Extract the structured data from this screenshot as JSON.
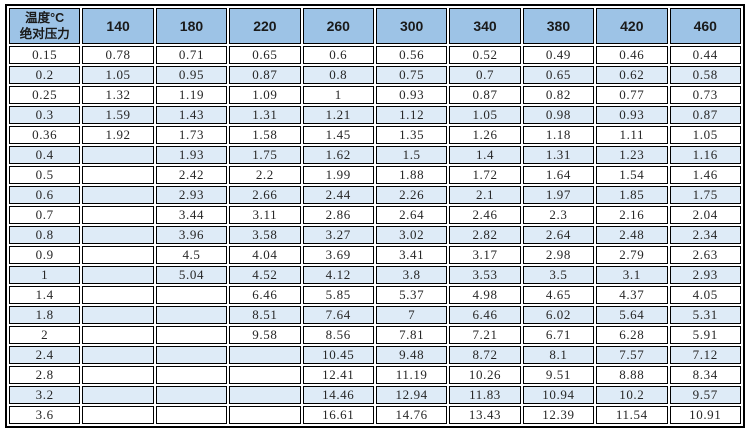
{
  "table": {
    "corner": {
      "line1": "温度°C",
      "line2": "绝对压力"
    },
    "columns": [
      "140",
      "180",
      "220",
      "260",
      "300",
      "340",
      "380",
      "420",
      "460"
    ],
    "rows": [
      {
        "pressure": "0.15",
        "values": [
          "0.78",
          "0.71",
          "0.65",
          "0.6",
          "0.56",
          "0.52",
          "0.49",
          "0.46",
          "0.44"
        ]
      },
      {
        "pressure": "0.2",
        "values": [
          "1.05",
          "0.95",
          "0.87",
          "0.8",
          "0.75",
          "0.7",
          "0.65",
          "0.62",
          "0.58"
        ]
      },
      {
        "pressure": "0.25",
        "values": [
          "1.32",
          "1.19",
          "1.09",
          "1",
          "0.93",
          "0.87",
          "0.82",
          "0.77",
          "0.73"
        ]
      },
      {
        "pressure": "0.3",
        "values": [
          "1.59",
          "1.43",
          "1.31",
          "1.21",
          "1.12",
          "1.05",
          "0.98",
          "0.93",
          "0.87"
        ]
      },
      {
        "pressure": "0.36",
        "values": [
          "1.92",
          "1.73",
          "1.58",
          "1.45",
          "1.35",
          "1.26",
          "1.18",
          "1.11",
          "1.05"
        ]
      },
      {
        "pressure": "0.4",
        "values": [
          "",
          "1.93",
          "1.75",
          "1.62",
          "1.5",
          "1.4",
          "1.31",
          "1.23",
          "1.16"
        ]
      },
      {
        "pressure": "0.5",
        "values": [
          "",
          "2.42",
          "2.2",
          "1.99",
          "1.88",
          "1.72",
          "1.64",
          "1.54",
          "1.46"
        ]
      },
      {
        "pressure": "0.6",
        "values": [
          "",
          "2.93",
          "2.66",
          "2.44",
          "2.26",
          "2.1",
          "1.97",
          "1.85",
          "1.75"
        ]
      },
      {
        "pressure": "0.7",
        "values": [
          "",
          "3.44",
          "3.11",
          "2.86",
          "2.64",
          "2.46",
          "2.3",
          "2.16",
          "2.04"
        ]
      },
      {
        "pressure": "0.8",
        "values": [
          "",
          "3.96",
          "3.58",
          "3.27",
          "3.02",
          "2.82",
          "2.64",
          "2.48",
          "2.34"
        ]
      },
      {
        "pressure": "0.9",
        "values": [
          "",
          "4.5",
          "4.04",
          "3.69",
          "3.41",
          "3.17",
          "2.98",
          "2.79",
          "2.63"
        ]
      },
      {
        "pressure": "1",
        "values": [
          "",
          "5.04",
          "4.52",
          "4.12",
          "3.8",
          "3.53",
          "3.5",
          "3.1",
          "2.93"
        ]
      },
      {
        "pressure": "1.4",
        "values": [
          "",
          "",
          "6.46",
          "5.85",
          "5.37",
          "4.98",
          "4.65",
          "4.37",
          "4.05"
        ]
      },
      {
        "pressure": "1.8",
        "values": [
          "",
          "",
          "8.51",
          "7.64",
          "7",
          "6.46",
          "6.02",
          "5.64",
          "5.31"
        ]
      },
      {
        "pressure": "2",
        "values": [
          "",
          "",
          "9.58",
          "8.56",
          "7.81",
          "7.21",
          "6.71",
          "6.28",
          "5.91"
        ]
      },
      {
        "pressure": "2.4",
        "values": [
          "",
          "",
          "",
          "10.45",
          "9.48",
          "8.72",
          "8.1",
          "7.57",
          "7.12"
        ]
      },
      {
        "pressure": "2.8",
        "values": [
          "",
          "",
          "",
          "12.41",
          "11.19",
          "10.26",
          "9.51",
          "8.88",
          "8.34"
        ]
      },
      {
        "pressure": "3.2",
        "values": [
          "",
          "",
          "",
          "14.46",
          "12.94",
          "11.83",
          "10.94",
          "10.2",
          "9.57"
        ]
      },
      {
        "pressure": "3.6",
        "values": [
          "",
          "",
          "",
          "16.61",
          "14.76",
          "13.43",
          "12.39",
          "11.54",
          "10.91"
        ]
      }
    ]
  },
  "colors": {
    "header_bg": "#9DC3E6",
    "stripe_bg": "#DEEBF7",
    "border": "#000000",
    "header_text": "#1a1a1a",
    "cell_text": "#262626"
  }
}
